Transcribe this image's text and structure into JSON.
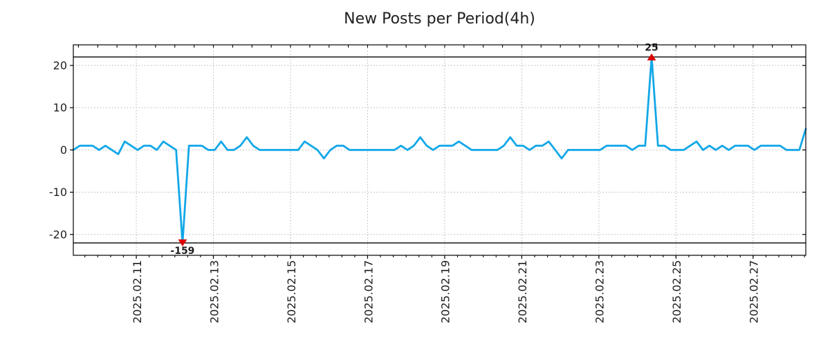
{
  "title": "New Posts per Period(4h)",
  "chart_data": {
    "type": "line",
    "title": "New Posts per Period(4h)",
    "period": "4h",
    "xlabel": "",
    "ylabel": "",
    "grid": true,
    "legend_position": "none",
    "line_color": "#12a7e8",
    "marker_color": "#dd0000",
    "annotation_text_color": "#12a7e8",
    "grid_color": "#b3b3b3",
    "axis_color": "#000000",
    "ylim": [
      -24.9,
      24.9
    ],
    "clip_value": 22,
    "y_ticks": [
      -20,
      -10,
      0,
      10,
      20
    ],
    "x_tick_labels": [
      "2025.02.11",
      "2025.02.13",
      "2025.02.15",
      "2025.02.17",
      "2025.02.19",
      "2025.02.21",
      "2025.02.23",
      "2025.02.25",
      "2025.02.27"
    ],
    "x_tick_indices": [
      9.8,
      21.8,
      33.8,
      45.8,
      57.8,
      69.8,
      81.8,
      93.8,
      105.8
    ],
    "values": [
      0,
      1,
      1,
      1,
      0,
      1,
      0,
      -1,
      2,
      1,
      0,
      1,
      1,
      0,
      2,
      1,
      0,
      -159,
      1,
      1,
      1,
      0,
      0,
      2,
      0,
      0,
      1,
      3,
      1,
      0,
      0,
      0,
      0,
      0,
      0,
      0,
      2,
      1,
      0,
      -2,
      0,
      1,
      1,
      0,
      0,
      0,
      0,
      0,
      0,
      0,
      0,
      1,
      0,
      1,
      3,
      1,
      0,
      1,
      1,
      1,
      2,
      1,
      0,
      0,
      0,
      0,
      0,
      1,
      3,
      1,
      1,
      0,
      1,
      1,
      2,
      0,
      -2,
      0,
      0,
      0,
      0,
      0,
      0,
      1,
      1,
      1,
      1,
      0,
      1,
      1,
      25,
      1,
      1,
      0,
      0,
      0,
      1,
      2,
      0,
      1,
      0,
      1,
      0,
      1,
      1,
      1,
      0,
      1,
      1,
      1,
      1,
      0,
      0,
      0,
      5
    ],
    "annotations": [
      {
        "index": 17,
        "value": -159,
        "label": "-159",
        "marker": "triangle-down"
      },
      {
        "index": 90,
        "value": 25,
        "label": "25",
        "marker": "triangle-up"
      }
    ]
  }
}
